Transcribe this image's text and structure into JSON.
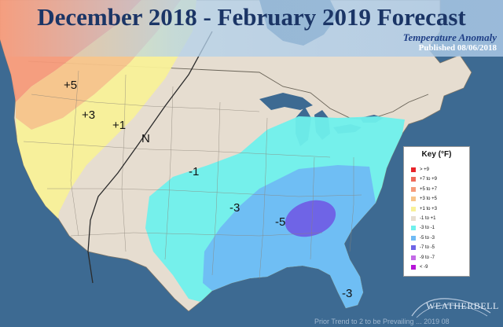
{
  "header": {
    "title": "December 2018 - February 2019 Forecast",
    "subtitle": "Temperature Anomaly",
    "published": "Published 08/06/2018"
  },
  "map_labels": {
    "p5": "+5",
    "p3": "+3",
    "p1": "+1",
    "n": "N",
    "m1": "-1",
    "m3": "-3",
    "m5": "-5",
    "m3_fl": "-3"
  },
  "key": {
    "title": "Key (°F)",
    "items": [
      {
        "label": "> +9",
        "color": "#e8242a"
      },
      {
        "label": "+7 to +9",
        "color": "#ee6a5a"
      },
      {
        "label": "+5 to +7",
        "color": "#f59a7a"
      },
      {
        "label": "+3 to +5",
        "color": "#f7c48a"
      },
      {
        "label": "+1 to +3",
        "color": "#f8f098"
      },
      {
        "label": "-1 to +1",
        "color": "#e6ddd0"
      },
      {
        "label": "-3 to -1",
        "color": "#6ff0ec"
      },
      {
        "label": "-5 to -3",
        "color": "#6fbaf4"
      },
      {
        "label": "-7 to -5",
        "color": "#6f64e6"
      },
      {
        "label": "-9 to -7",
        "color": "#c36ae6"
      },
      {
        "label": "< -9",
        "color": "#b614d8"
      }
    ]
  },
  "logo": {
    "text": "WEATHERBELL"
  },
  "footer": {
    "text": "Prior Trend to 2 to be Prevailing ... 2019 08"
  },
  "colors": {
    "ocean": "#3d6a92",
    "land_neutral": "#e6ddd0",
    "warm_1_3": "#f8f098",
    "warm_3_5": "#f7c48a",
    "warm_5_7": "#f59a7a",
    "cool_1_3": "#6ff0ec",
    "cool_3_5": "#6fbaf4",
    "cool_5_7": "#6f64e6"
  }
}
